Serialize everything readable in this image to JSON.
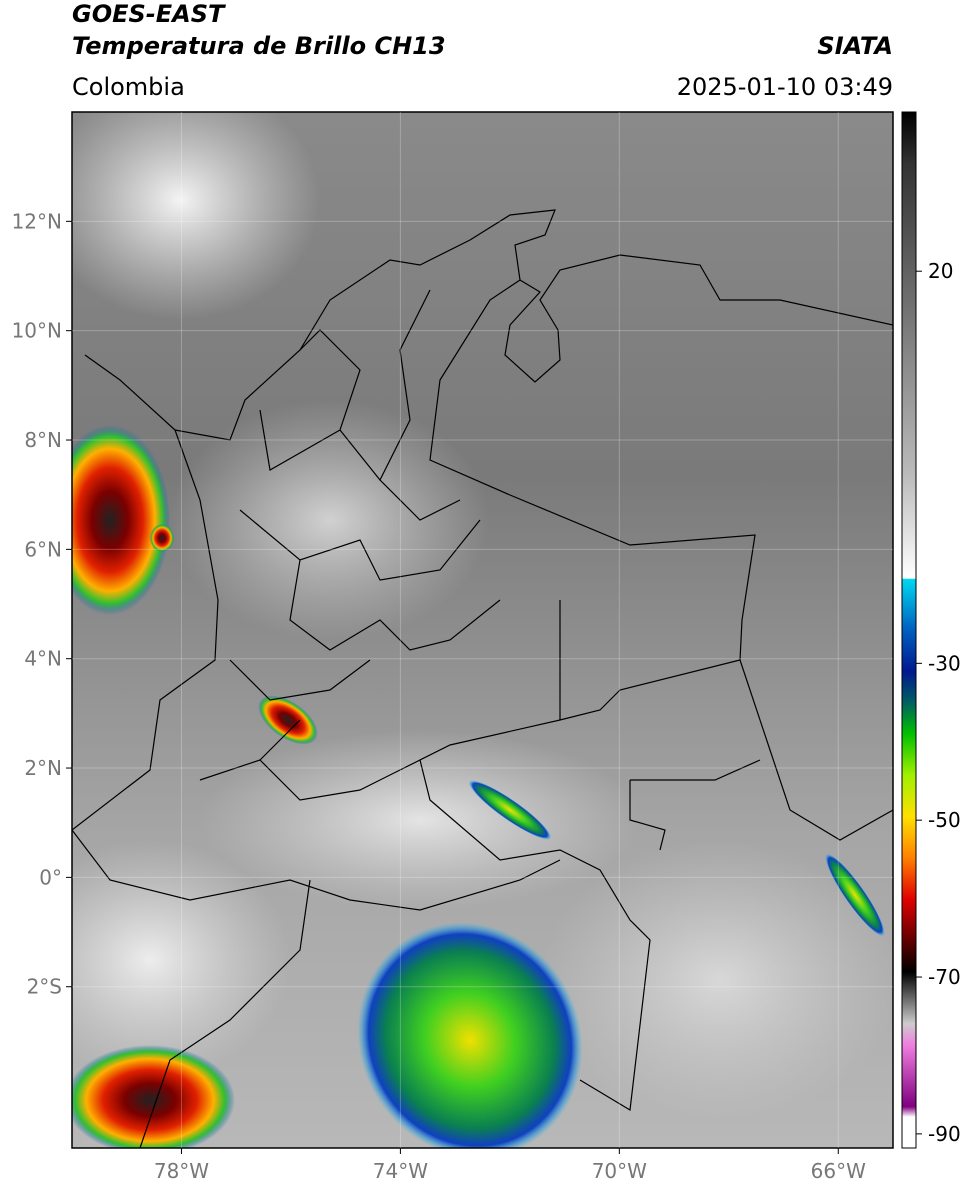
{
  "header": {
    "satellite": "GOES-EAST",
    "product": "Temperatura de Brillo CH13",
    "source": "SIATA",
    "region": "Colombia",
    "timestamp": "2025-01-10 03:49"
  },
  "map": {
    "xlim": [
      -80,
      -65
    ],
    "ylim": [
      -4.95,
      14
    ],
    "xticks": [
      {
        "value": -78,
        "label": "78°W"
      },
      {
        "value": -74,
        "label": "74°W"
      },
      {
        "value": -70,
        "label": "70°W"
      },
      {
        "value": -66,
        "label": "66°W"
      }
    ],
    "yticks": [
      {
        "value": 12,
        "label": "12°N"
      },
      {
        "value": 10,
        "label": "10°N"
      },
      {
        "value": 8,
        "label": "8°N"
      },
      {
        "value": 6,
        "label": "6°N"
      },
      {
        "value": 4,
        "label": "4°N"
      },
      {
        "value": 2,
        "label": "2°N"
      },
      {
        "value": 0,
        "label": "0°"
      },
      {
        "value": -2,
        "label": "2°S"
      }
    ]
  },
  "colorbar": {
    "clim": [
      -91.8,
      40.3
    ],
    "ticks": [
      20,
      -30,
      -50,
      -70,
      -90
    ]
  }
}
